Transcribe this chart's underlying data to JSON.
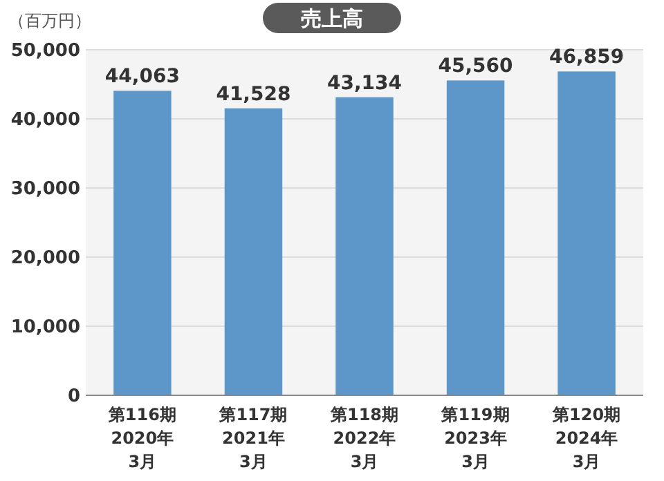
{
  "chart_data": {
    "type": "bar",
    "title": "売上高",
    "ylabel": "（百万円）",
    "categories": [
      "第116期\n2020年\n3月",
      "第117期\n2021年\n3月",
      "第118期\n2022年\n3月",
      "第119期\n2023年\n3月",
      "第120期\n2024年\n3月"
    ],
    "values": [
      44063,
      41528,
      43134,
      45560,
      46859
    ],
    "color": "#5d97ca",
    "ylim": [
      0,
      50000
    ],
    "yticks": [
      {
        "value": 0,
        "label": "0"
      },
      {
        "value": 10000,
        "label": "10,000"
      },
      {
        "value": 20000,
        "label": "20,000"
      },
      {
        "value": 30000,
        "label": "30,000"
      },
      {
        "value": 40000,
        "label": "40,000"
      },
      {
        "value": 50000,
        "label": "50,000"
      }
    ],
    "grid": "y",
    "value_labels": [
      "44,063",
      "41,528",
      "43,134",
      "45,560",
      "46,859"
    ]
  }
}
